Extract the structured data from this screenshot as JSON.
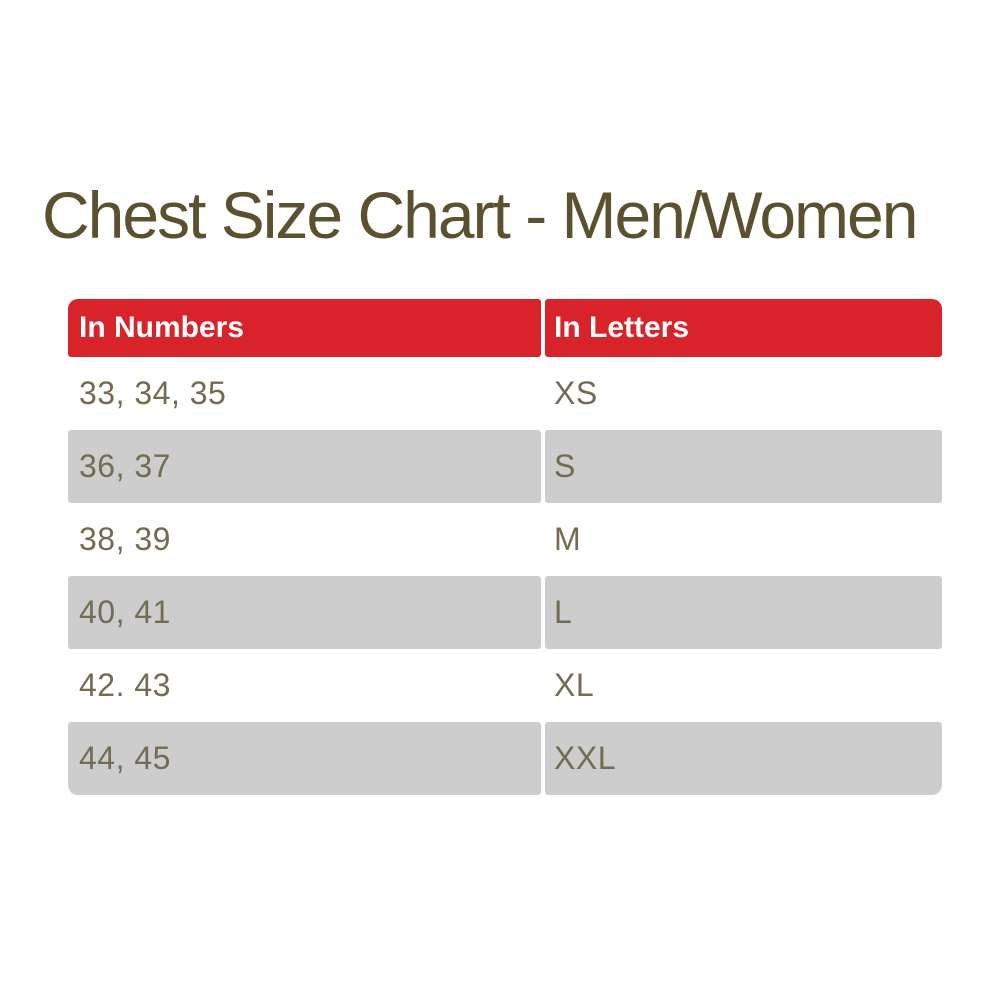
{
  "title": "Chest Size Chart - Men/Women",
  "table": {
    "columns": [
      {
        "label": "In Numbers"
      },
      {
        "label": "In Letters"
      }
    ],
    "rows": [
      {
        "numbers": "33, 34, 35",
        "letters": "XS"
      },
      {
        "numbers": "36, 37",
        "letters": "S"
      },
      {
        "numbers": "38, 39",
        "letters": "M"
      },
      {
        "numbers": "40, 41",
        "letters": "L"
      },
      {
        "numbers": "42. 43",
        "letters": "XL"
      },
      {
        "numbers": "44, 45",
        "letters": "XXL"
      }
    ]
  },
  "colors": {
    "header_bg": "#d8232a",
    "header_text": "#ffffff",
    "alt_row_bg": "#cdcdcd",
    "title_text": "#5c512f",
    "cell_text": "#746c52",
    "page_bg": "#ffffff"
  },
  "chart_data": {
    "type": "table",
    "title": "Chest Size Chart - Men/Women",
    "columns": [
      "In Numbers",
      "In Letters"
    ],
    "rows": [
      [
        "33, 34, 35",
        "XS"
      ],
      [
        "36, 37",
        "S"
      ],
      [
        "38, 39",
        "M"
      ],
      [
        "40, 41",
        "L"
      ],
      [
        "42. 43",
        "XL"
      ],
      [
        "44, 45",
        "XXL"
      ]
    ],
    "layout": {
      "header_style": "red background, white bold text",
      "row_striping": "white / light gray alternating starting with white",
      "grid": "off, columns separated by white gap"
    }
  }
}
